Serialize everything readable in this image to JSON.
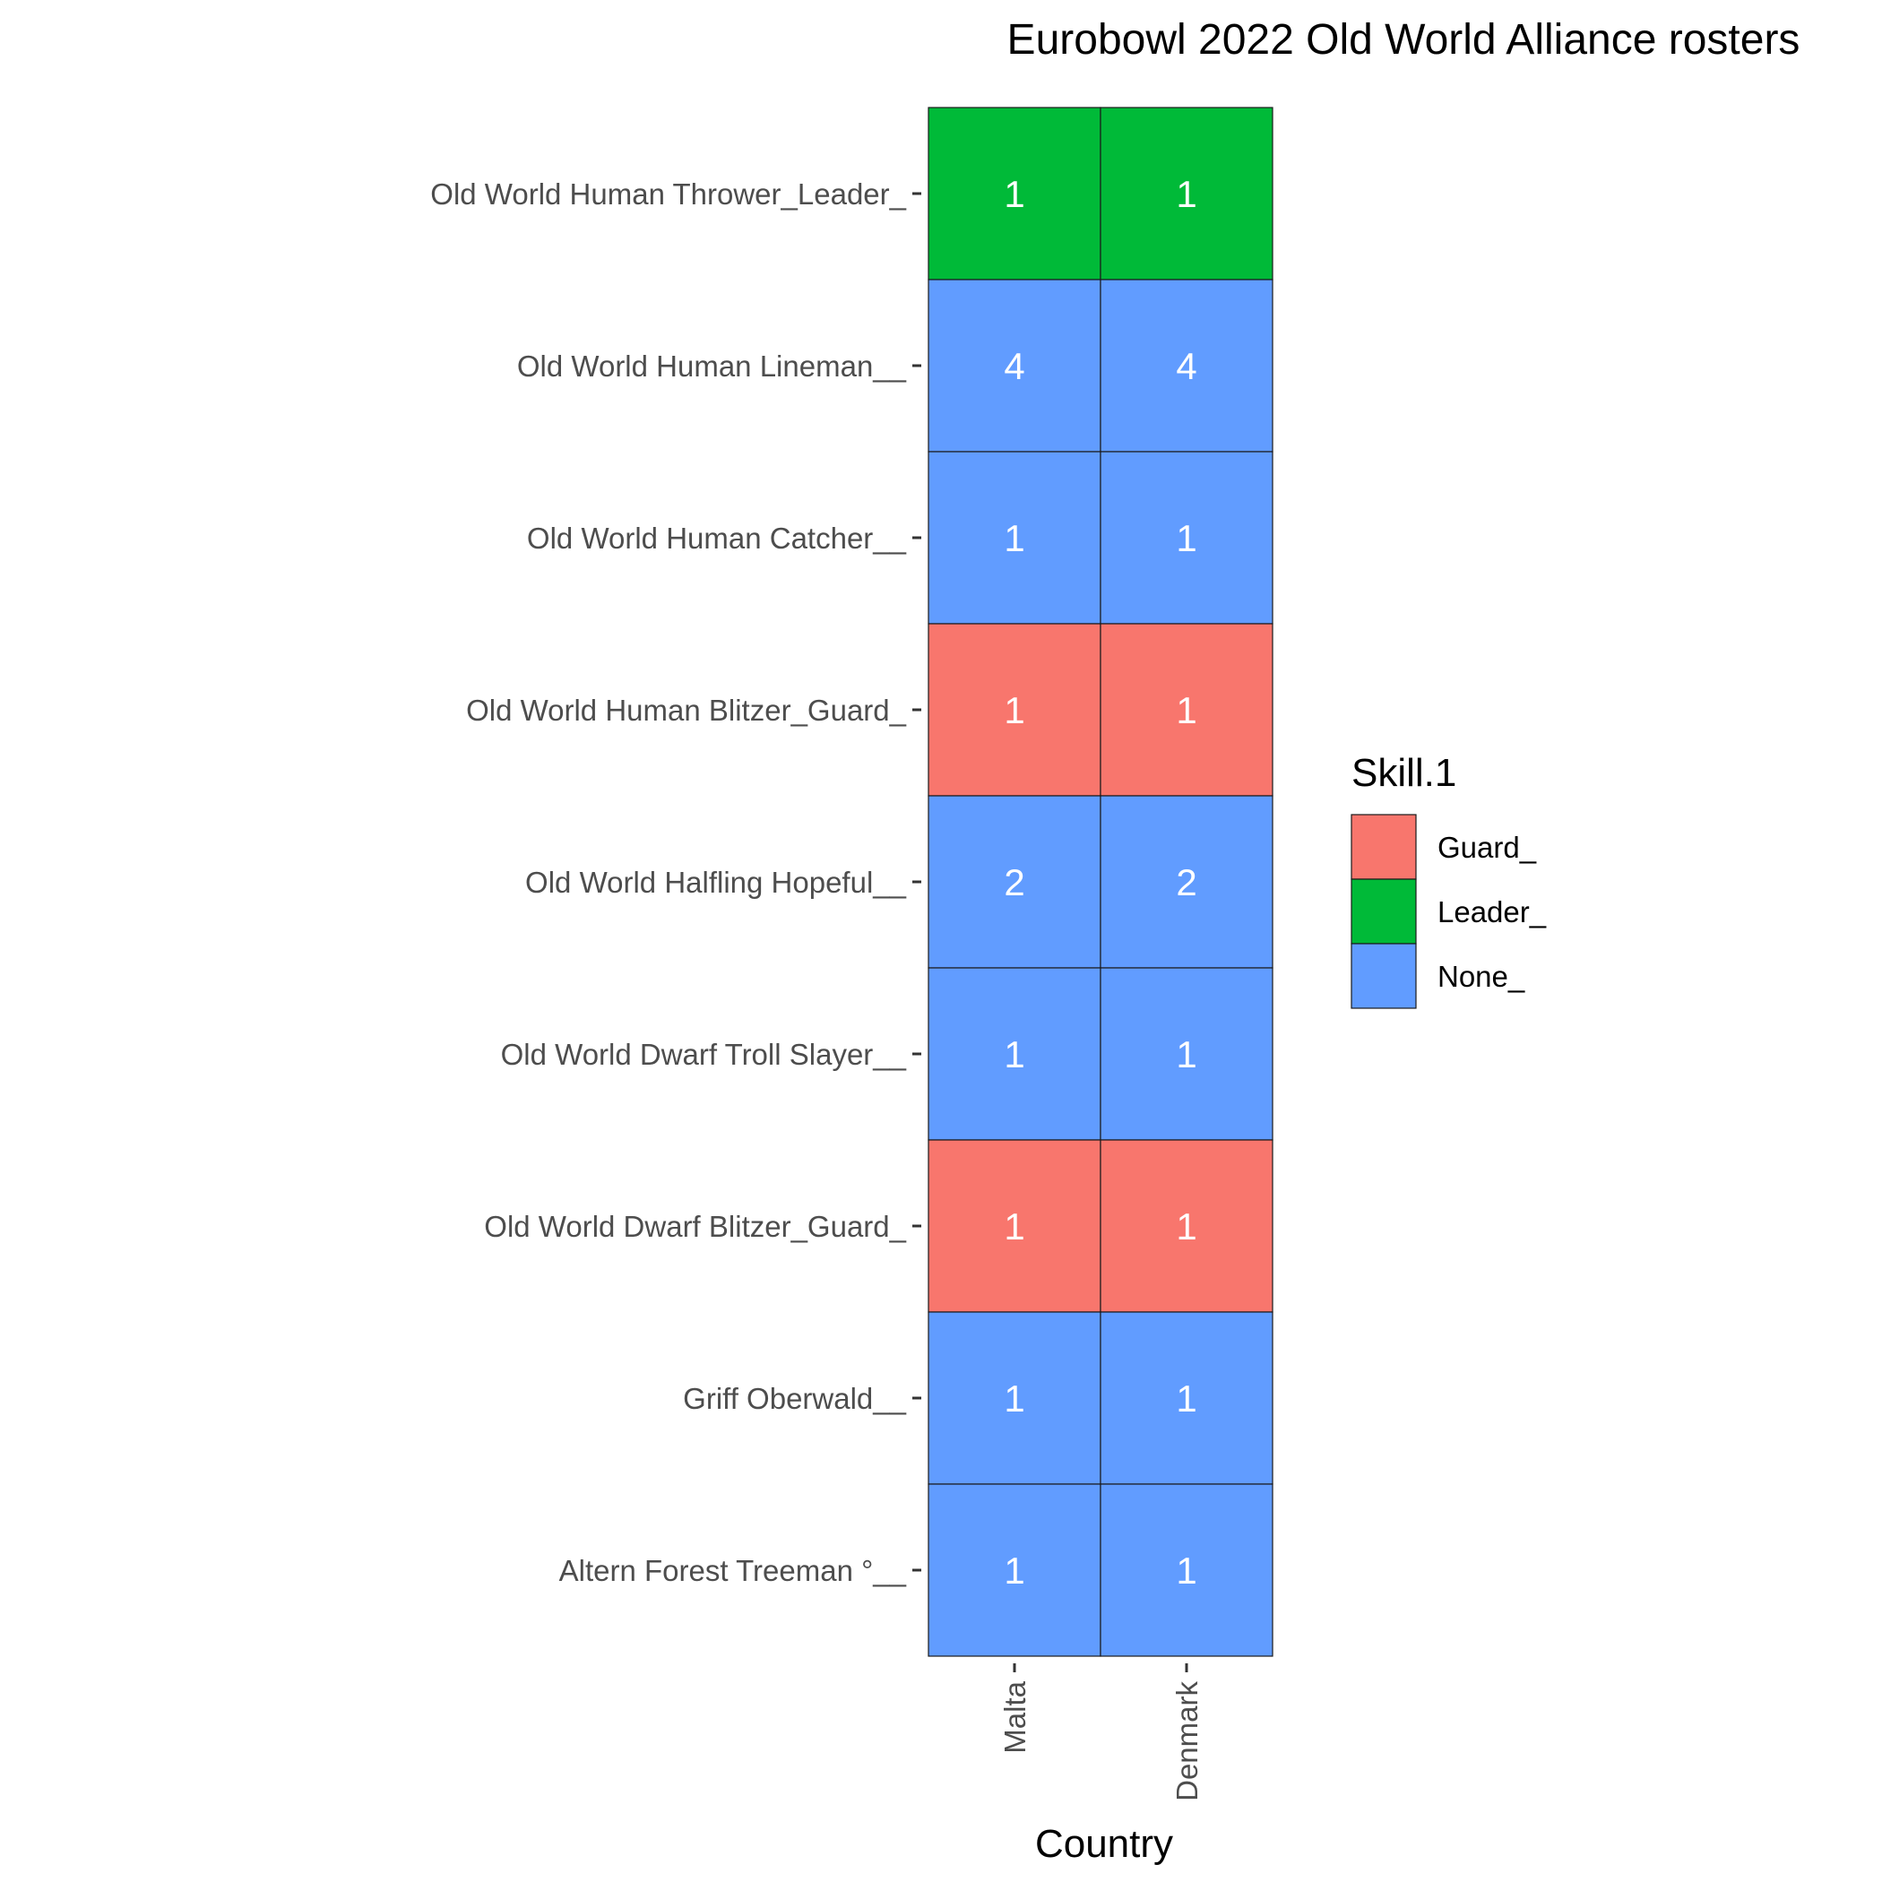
{
  "chart_data": {
    "type": "heatmap",
    "title": "Eurobowl 2022 Old World Alliance rosters",
    "xlabel": "Country",
    "ylabel": "",
    "x_categories": [
      "Malta",
      "Denmark"
    ],
    "y_categories": [
      "Old World Human Thrower_Leader_",
      "Old World Human Lineman__",
      "Old World Human Catcher__",
      "Old World Human Blitzer_Guard_",
      "Old World Halfling Hopeful__",
      "Old World Dwarf Troll Slayer__",
      "Old World Dwarf Blitzer_Guard_",
      "Griff Oberwald__",
      "Altern Forest Treeman °__"
    ],
    "cells": [
      {
        "y": "Old World Human Thrower_Leader_",
        "x": "Malta",
        "value": 1,
        "fill": "Leader_"
      },
      {
        "y": "Old World Human Thrower_Leader_",
        "x": "Denmark",
        "value": 1,
        "fill": "Leader_"
      },
      {
        "y": "Old World Human Lineman__",
        "x": "Malta",
        "value": 4,
        "fill": "None_"
      },
      {
        "y": "Old World Human Lineman__",
        "x": "Denmark",
        "value": 4,
        "fill": "None_"
      },
      {
        "y": "Old World Human Catcher__",
        "x": "Malta",
        "value": 1,
        "fill": "None_"
      },
      {
        "y": "Old World Human Catcher__",
        "x": "Denmark",
        "value": 1,
        "fill": "None_"
      },
      {
        "y": "Old World Human Blitzer_Guard_",
        "x": "Malta",
        "value": 1,
        "fill": "Guard_"
      },
      {
        "y": "Old World Human Blitzer_Guard_",
        "x": "Denmark",
        "value": 1,
        "fill": "Guard_"
      },
      {
        "y": "Old World Halfling Hopeful__",
        "x": "Malta",
        "value": 2,
        "fill": "None_"
      },
      {
        "y": "Old World Halfling Hopeful__",
        "x": "Denmark",
        "value": 2,
        "fill": "None_"
      },
      {
        "y": "Old World Dwarf Troll Slayer__",
        "x": "Malta",
        "value": 1,
        "fill": "None_"
      },
      {
        "y": "Old World Dwarf Troll Slayer__",
        "x": "Denmark",
        "value": 1,
        "fill": "None_"
      },
      {
        "y": "Old World Dwarf Blitzer_Guard_",
        "x": "Malta",
        "value": 1,
        "fill": "Guard_"
      },
      {
        "y": "Old World Dwarf Blitzer_Guard_",
        "x": "Denmark",
        "value": 1,
        "fill": "Guard_"
      },
      {
        "y": "Griff Oberwald__",
        "x": "Malta",
        "value": 1,
        "fill": "None_"
      },
      {
        "y": "Griff Oberwald__",
        "x": "Denmark",
        "value": 1,
        "fill": "None_"
      },
      {
        "y": "Altern Forest Treeman °__",
        "x": "Malta",
        "value": 1,
        "fill": "None_"
      },
      {
        "y": "Altern Forest Treeman °__",
        "x": "Denmark",
        "value": 1,
        "fill": "None_"
      }
    ],
    "legend": {
      "title": "Skill.1",
      "placement": "right",
      "entries": [
        {
          "label": "Guard_",
          "color": "#F8766D"
        },
        {
          "label": "Leader_",
          "color": "#00BA38"
        },
        {
          "label": "None_",
          "color": "#619CFF"
        }
      ]
    },
    "grid": false
  }
}
